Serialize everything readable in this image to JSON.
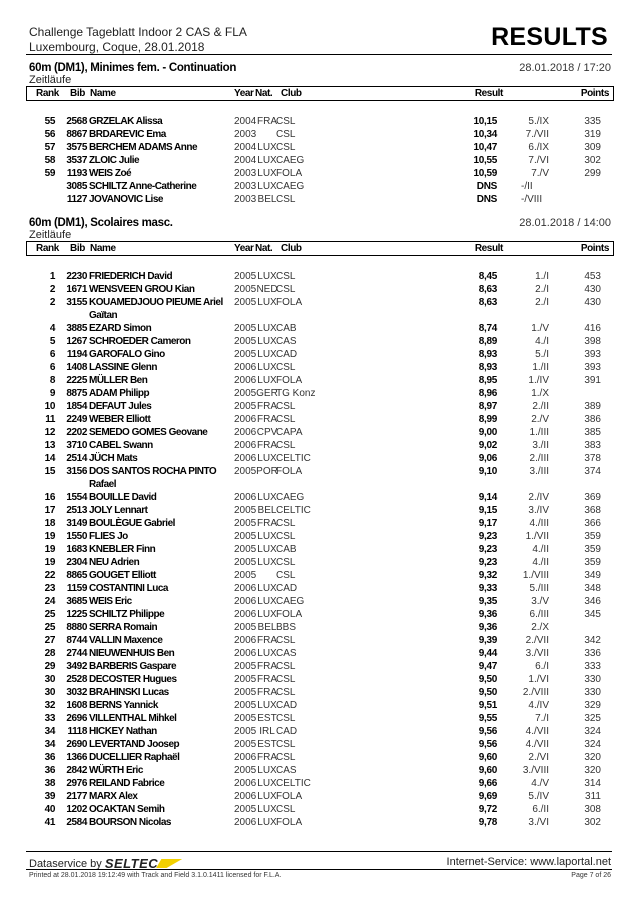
{
  "header": {
    "event": "Challenge Tageblatt Indoor 2 CAS & FLA",
    "venue": "Luxembourg, Coque, 28.01.2018",
    "doc_type": "RESULTS"
  },
  "columns": {
    "rank": "Rank",
    "bib": "Bib",
    "name": "Name",
    "year": "Year",
    "nat": "Nat.",
    "club": "Club",
    "result": "Result",
    "points": "Points"
  },
  "sections": [
    {
      "title": "60m (DM1), Minimes fem. - Continuation",
      "subtitle": "Zeitläufe",
      "datetime": "28.01.2018 / 17:20",
      "rows": [
        {
          "rank": "55",
          "bib": "2568",
          "name": "GRZELAK Alissa",
          "year": "2004",
          "nat": "FRA",
          "club": "CSL",
          "result": "10,15",
          "pos": "5./IX",
          "points": "335"
        },
        {
          "rank": "56",
          "bib": "8867",
          "name": "BRDAREVIC Ema",
          "year": "2003",
          "nat": "",
          "club": "CSL",
          "result": "10,34",
          "pos": "7./VII",
          "points": "319"
        },
        {
          "rank": "57",
          "bib": "3575",
          "name": "BERCHEM ADAMS Anne",
          "year": "2004",
          "nat": "LUX",
          "club": "CSL",
          "result": "10,47",
          "pos": "6./IX",
          "points": "309"
        },
        {
          "rank": "58",
          "bib": "3537",
          "name": "ZLOIC Julie",
          "year": "2004",
          "nat": "LUX",
          "club": "CAEG",
          "result": "10,55",
          "pos": "7./VI",
          "points": "302"
        },
        {
          "rank": "59",
          "bib": "1193",
          "name": "WEIS Zoé",
          "year": "2003",
          "nat": "LUX",
          "club": "FOLA",
          "result": "10,59",
          "pos": "7./V",
          "points": "299"
        },
        {
          "rank": "",
          "bib": "3085",
          "name": "SCHILTZ Anne-Catherine",
          "year": "2003",
          "nat": "LUX",
          "club": "CAEG",
          "result": "DNS",
          "pos": "-/II",
          "points": ""
        },
        {
          "rank": "",
          "bib": "1127",
          "name": "JOVANOVIC Lise",
          "year": "2003",
          "nat": "BEL",
          "club": "CSL",
          "result": "DNS",
          "pos": "-/VIII",
          "points": ""
        }
      ]
    },
    {
      "title": "60m (DM1), Scolaires masc.",
      "subtitle": "Zeitläufe",
      "datetime": "28.01.2018 / 14:00",
      "rows": [
        {
          "rank": "1",
          "bib": "2230",
          "name": "FRIEDERICH David",
          "year": "2005",
          "nat": "LUX",
          "club": "CSL",
          "result": "8,45",
          "pos": "1./I",
          "points": "453"
        },
        {
          "rank": "2",
          "bib": "1671",
          "name": "WENSVEEN GROU Kian",
          "year": "2005",
          "nat": "NED",
          "club": "CSL",
          "result": "8,63",
          "pos": "2./I",
          "points": "430"
        },
        {
          "rank": "2",
          "bib": "3155",
          "name": "KOUAMEDJOUO PIEUME Ariel Gaïtan",
          "year": "2005",
          "nat": "LUX",
          "club": "FOLA",
          "result": "8,63",
          "pos": "2./I",
          "points": "430"
        },
        {
          "rank": "4",
          "bib": "3885",
          "name": "EZARD Simon",
          "year": "2005",
          "nat": "LUX",
          "club": "CAB",
          "result": "8,74",
          "pos": "1./V",
          "points": "416"
        },
        {
          "rank": "5",
          "bib": "1267",
          "name": "SCHROEDER Cameron",
          "year": "2005",
          "nat": "LUX",
          "club": "CAS",
          "result": "8,89",
          "pos": "4./I",
          "points": "398"
        },
        {
          "rank": "6",
          "bib": "1194",
          "name": "GAROFALO Gino",
          "year": "2005",
          "nat": "LUX",
          "club": "CAD",
          "result": "8,93",
          "pos": "5./I",
          "points": "393"
        },
        {
          "rank": "6",
          "bib": "1408",
          "name": "LASSINE Glenn",
          "year": "2006",
          "nat": "LUX",
          "club": "CSL",
          "result": "8,93",
          "pos": "1./II",
          "points": "393"
        },
        {
          "rank": "8",
          "bib": "2225",
          "name": "MÜLLER Ben",
          "year": "2006",
          "nat": "LUX",
          "club": "FOLA",
          "result": "8,95",
          "pos": "1./IV",
          "points": "391"
        },
        {
          "rank": "9",
          "bib": "8875",
          "name": "ADAM Philipp",
          "year": "2005",
          "nat": "GER",
          "club": "TG Konz",
          "result": "8,96",
          "pos": "1./X",
          "points": ""
        },
        {
          "rank": "10",
          "bib": "1854",
          "name": "DEFAUT Jules",
          "year": "2005",
          "nat": "FRA",
          "club": "CSL",
          "result": "8,97",
          "pos": "2./II",
          "points": "389"
        },
        {
          "rank": "11",
          "bib": "2249",
          "name": "WEBER Elliott",
          "year": "2006",
          "nat": "FRA",
          "club": "CSL",
          "result": "8,99",
          "pos": "2./V",
          "points": "386"
        },
        {
          "rank": "12",
          "bib": "2202",
          "name": "SEMEDO GOMES Geovane",
          "year": "2006",
          "nat": "CPV",
          "club": "CAPA",
          "result": "9,00",
          "pos": "1./III",
          "points": "385"
        },
        {
          "rank": "13",
          "bib": "3710",
          "name": "CABEL Swann",
          "year": "2006",
          "nat": "FRA",
          "club": "CSL",
          "result": "9,02",
          "pos": "3./II",
          "points": "383"
        },
        {
          "rank": "14",
          "bib": "2514",
          "name": "JÜCH Mats",
          "year": "2006",
          "nat": "LUX",
          "club": "CELTIC",
          "result": "9,06",
          "pos": "2./III",
          "points": "378"
        },
        {
          "rank": "15",
          "bib": "3156",
          "name": "DOS SANTOS ROCHA PINTO Rafael",
          "year": "2005",
          "nat": "POR",
          "club": "FOLA",
          "result": "9,10",
          "pos": "3./III",
          "points": "374"
        },
        {
          "rank": "16",
          "bib": "1554",
          "name": "BOUILLE David",
          "year": "2006",
          "nat": "LUX",
          "club": "CAEG",
          "result": "9,14",
          "pos": "2./IV",
          "points": "369"
        },
        {
          "rank": "17",
          "bib": "2513",
          "name": "JOLY Lennart",
          "year": "2005",
          "nat": "BEL",
          "club": "CELTIC",
          "result": "9,15",
          "pos": "3./IV",
          "points": "368"
        },
        {
          "rank": "18",
          "bib": "3149",
          "name": "BOULÈGUE Gabriel",
          "year": "2005",
          "nat": "FRA",
          "club": "CSL",
          "result": "9,17",
          "pos": "4./III",
          "points": "366"
        },
        {
          "rank": "19",
          "bib": "1550",
          "name": "FLIES Jo",
          "year": "2005",
          "nat": "LUX",
          "club": "CSL",
          "result": "9,23",
          "pos": "1./VII",
          "points": "359"
        },
        {
          "rank": "19",
          "bib": "1683",
          "name": "KNEBLER Finn",
          "year": "2005",
          "nat": "LUX",
          "club": "CAB",
          "result": "9,23",
          "pos": "4./II",
          "points": "359"
        },
        {
          "rank": "19",
          "bib": "2304",
          "name": "NEU Adrien",
          "year": "2005",
          "nat": "LUX",
          "club": "CSL",
          "result": "9,23",
          "pos": "4./II",
          "points": "359"
        },
        {
          "rank": "22",
          "bib": "8865",
          "name": "GOUGET Elliott",
          "year": "2005",
          "nat": "",
          "club": "CSL",
          "result": "9,32",
          "pos": "1./VIII",
          "points": "349"
        },
        {
          "rank": "23",
          "bib": "1159",
          "name": "COSTANTINI Luca",
          "year": "2006",
          "nat": "LUX",
          "club": "CAD",
          "result": "9,33",
          "pos": "5./III",
          "points": "348"
        },
        {
          "rank": "24",
          "bib": "3685",
          "name": "WEIS Eric",
          "year": "2006",
          "nat": "LUX",
          "club": "CAEG",
          "result": "9,35",
          "pos": "3./V",
          "points": "346"
        },
        {
          "rank": "25",
          "bib": "1225",
          "name": "SCHILTZ Philippe",
          "year": "2006",
          "nat": "LUX",
          "club": "FOLA",
          "result": "9,36",
          "pos": "6./III",
          "points": "345"
        },
        {
          "rank": "25",
          "bib": "8880",
          "name": "SERRA Romain",
          "year": "2005",
          "nat": "BEL",
          "club": "BBS",
          "result": "9,36",
          "pos": "2./X",
          "points": ""
        },
        {
          "rank": "27",
          "bib": "8744",
          "name": "VALLIN Maxence",
          "year": "2006",
          "nat": "FRA",
          "club": "CSL",
          "result": "9,39",
          "pos": "2./VII",
          "points": "342"
        },
        {
          "rank": "28",
          "bib": "2744",
          "name": "NIEUWENHUIS Ben",
          "year": "2006",
          "nat": "LUX",
          "club": "CAS",
          "result": "9,44",
          "pos": "3./VII",
          "points": "336"
        },
        {
          "rank": "29",
          "bib": "3492",
          "name": "BARBERIS Gaspare",
          "year": "2005",
          "nat": "FRA",
          "club": "CSL",
          "result": "9,47",
          "pos": "6./I",
          "points": "333"
        },
        {
          "rank": "30",
          "bib": "2528",
          "name": "DECOSTER Hugues",
          "year": "2005",
          "nat": "FRA",
          "club": "CSL",
          "result": "9,50",
          "pos": "1./VI",
          "points": "330"
        },
        {
          "rank": "30",
          "bib": "3032",
          "name": "BRAHINSKI Lucas",
          "year": "2005",
          "nat": "FRA",
          "club": "CSL",
          "result": "9,50",
          "pos": "2./VIII",
          "points": "330"
        },
        {
          "rank": "32",
          "bib": "1608",
          "name": "BERNS Yannick",
          "year": "2005",
          "nat": "LUX",
          "club": "CAD",
          "result": "9,51",
          "pos": "4./IV",
          "points": "329"
        },
        {
          "rank": "33",
          "bib": "2696",
          "name": "VILLENTHAL Mihkel",
          "year": "2005",
          "nat": "EST",
          "club": "CSL",
          "result": "9,55",
          "pos": "7./I",
          "points": "325"
        },
        {
          "rank": "34",
          "bib": "1118",
          "name": "HICKEY Nathan",
          "year": "2005",
          "nat": "IRL",
          "club": "CAD",
          "result": "9,56",
          "pos": "4./VII",
          "points": "324"
        },
        {
          "rank": "34",
          "bib": "2690",
          "name": "LEVERTAND Joosep",
          "year": "2005",
          "nat": "EST",
          "club": "CSL",
          "result": "9,56",
          "pos": "4./VII",
          "points": "324"
        },
        {
          "rank": "36",
          "bib": "1366",
          "name": "DUCELLIER Raphaël",
          "year": "2006",
          "nat": "FRA",
          "club": "CSL",
          "result": "9,60",
          "pos": "2./VI",
          "points": "320"
        },
        {
          "rank": "36",
          "bib": "2842",
          "name": "WÜRTH Eric",
          "year": "2005",
          "nat": "LUX",
          "club": "CAS",
          "result": "9,60",
          "pos": "3./VIII",
          "points": "320"
        },
        {
          "rank": "38",
          "bib": "2976",
          "name": "REILAND Fabrice",
          "year": "2006",
          "nat": "LUX",
          "club": "CELTIC",
          "result": "9,66",
          "pos": "4./V",
          "points": "314"
        },
        {
          "rank": "39",
          "bib": "2177",
          "name": "MARX Alex",
          "year": "2006",
          "nat": "LUX",
          "club": "FOLA",
          "result": "9,69",
          "pos": "5./IV",
          "points": "311"
        },
        {
          "rank": "40",
          "bib": "1202",
          "name": "OCAKTAN Semih",
          "year": "2005",
          "nat": "LUX",
          "club": "CSL",
          "result": "9,72",
          "pos": "6./II",
          "points": "308"
        },
        {
          "rank": "41",
          "bib": "2584",
          "name": "BOURSON Nicolas",
          "year": "2006",
          "nat": "LUX",
          "club": "FOLA",
          "result": "9,78",
          "pos": "3./VI",
          "points": "302"
        }
      ]
    }
  ],
  "footer": {
    "dataservice": "Dataservice by",
    "logo": "SELTEC",
    "internet": "Internet-Service: www.laportal.net",
    "printed": "Printed at 28.01.2018 19:12:49 with Track and Field 3.1.0.1411 licensed for F.L.A.",
    "page": "Page 7 of 26",
    "logo_color": "#f2d000"
  }
}
